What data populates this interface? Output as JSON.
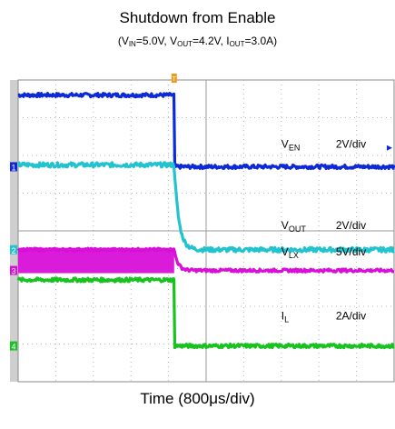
{
  "chart_data": {
    "type": "line",
    "title": "Shutdown from Enable",
    "subtitle": {
      "parts": [
        {
          "text": "(V"
        },
        {
          "sub": "IN"
        },
        {
          "text": "=5.0V, V"
        },
        {
          "sub": "OUT"
        },
        {
          "text": "=4.2V, I"
        },
        {
          "sub": "OUT"
        },
        {
          "text": "=3.0A)"
        }
      ]
    },
    "xlabel": "Time (800μs/div)",
    "x_divisions": 10,
    "y_divisions": 8,
    "grid": true,
    "trigger_marker": "T",
    "series": [
      {
        "name": "V",
        "sub": "EN",
        "scale": "2V/div",
        "color": "#0d2ad6",
        "marker": "1",
        "ground_div": 5.7,
        "level_before_div": 7.6,
        "level_after_div": 5.7,
        "tau_div": 0.0,
        "noise": 0.05,
        "label_div": 6.2,
        "marker_div": 5.7,
        "scale_div": 6.2
      },
      {
        "name": "V",
        "sub": "OUT",
        "scale": "2V/div",
        "color": "#22c3cf",
        "marker": "2",
        "ground_div": 3.5,
        "level_before_div": 5.75,
        "level_after_div": 3.5,
        "tau_div": 0.12,
        "noise": 0.06,
        "label_div": 4.05,
        "marker_div": 3.5,
        "scale_div": 4.05
      },
      {
        "name": "V",
        "sub": "LX",
        "scale": "5V/div",
        "color": "#d80fd8",
        "marker": "3",
        "ground_div": 2.95,
        "level_before_div": 3.5,
        "level_after_div": 2.95,
        "tau_div": 0.1,
        "noise": 0.04,
        "band_before": true,
        "label_div": 3.35,
        "marker_div": 2.95,
        "scale_div": 3.35
      },
      {
        "name": "I",
        "sub": "L",
        "scale": "2A/div",
        "color": "#18c21f",
        "marker": "4",
        "ground_div": 0.95,
        "level_before_div": 2.7,
        "level_after_div": 0.95,
        "tau_div": 0.0,
        "noise": 0.05,
        "label_div": 1.65,
        "marker_div": 0.95,
        "scale_div": 1.65
      }
    ],
    "event_x_div": 4.15
  }
}
